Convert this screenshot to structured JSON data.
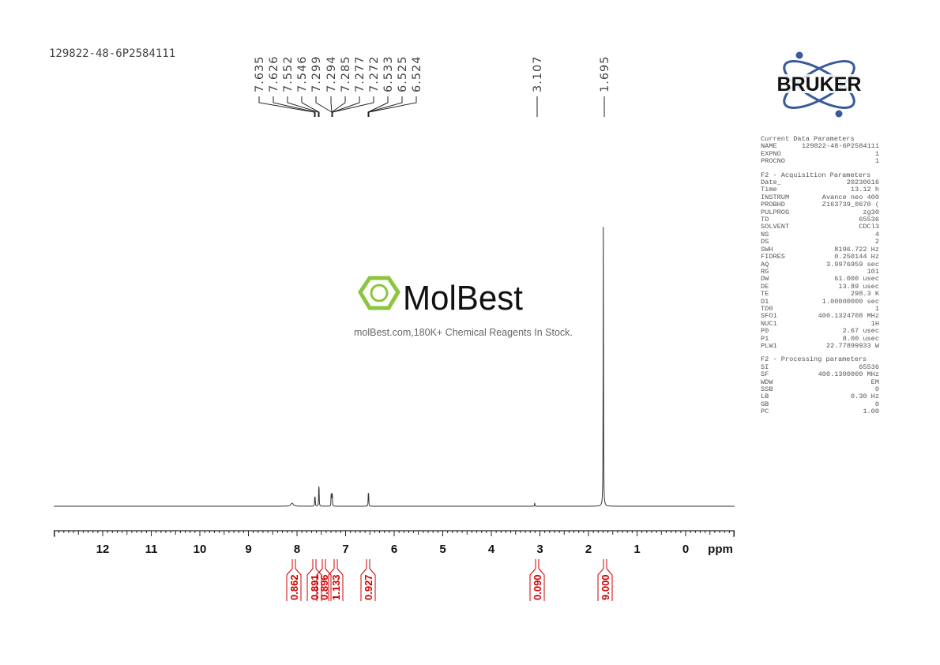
{
  "sample_name": "129822-48-6P2584111",
  "watermark": {
    "brand": "MolBest",
    "tagline": "molBest.com,180K+ Chemical Reagents In Stock."
  },
  "logo": {
    "text": "BRUKER"
  },
  "parameters": {
    "sections": [
      {
        "title": "Current Data Parameters",
        "rows": [
          [
            "NAME",
            "129822-48-6P2584111"
          ],
          [
            "EXPNO",
            "1"
          ],
          [
            "PROCNO",
            "1"
          ]
        ]
      },
      {
        "title": "F2 - Acquisition Parameters",
        "rows": [
          [
            "Date_",
            "20230616"
          ],
          [
            "Time",
            "13.12 h"
          ],
          [
            "INSTRUM",
            "Avance neo 400"
          ],
          [
            "PROBHD",
            "Z163739_0670 ("
          ],
          [
            "PULPROG",
            "zg30"
          ],
          [
            "TD",
            "65536"
          ],
          [
            "SOLVENT",
            "CDCl3"
          ],
          [
            "NS",
            "4"
          ],
          [
            "DS",
            "2"
          ],
          [
            "SWH",
            "8196.722 Hz"
          ],
          [
            "FIDRES",
            "0.250144 Hz"
          ],
          [
            "AQ",
            "3.9976959 sec"
          ],
          [
            "RG",
            "101"
          ],
          [
            "DW",
            "61.000 usec"
          ],
          [
            "DE",
            "13.89 usec"
          ],
          [
            "TE",
            "298.3 K"
          ],
          [
            "D1",
            "1.00000000 sec"
          ],
          [
            "TD0",
            "1"
          ],
          [
            "SFO1",
            "400.1324708 MHz"
          ],
          [
            "NUC1",
            "1H"
          ],
          [
            "P0",
            "2.67 usec"
          ],
          [
            "P1",
            "8.00 usec"
          ],
          [
            "PLW1",
            "22.77899933 W"
          ]
        ]
      },
      {
        "title": "F2 - Processing parameters",
        "rows": [
          [
            "SI",
            "65536"
          ],
          [
            "SF",
            "400.1300000 MHz"
          ],
          [
            "WDW",
            "EM"
          ],
          [
            "SSB",
            "0"
          ],
          [
            "LB",
            "0.30 Hz"
          ],
          [
            "GB",
            "0"
          ],
          [
            "PC",
            "1.00"
          ]
        ]
      }
    ]
  },
  "chart_data": {
    "type": "line",
    "xlabel": "ppm",
    "xlim": [
      13,
      -1
    ],
    "x_reversed": true,
    "xticks": [
      "12",
      "11",
      "10",
      "9",
      "8",
      "7",
      "6",
      "5",
      "4",
      "3",
      "2",
      "1",
      "0"
    ],
    "grid": false,
    "peak_labels": [
      "7.635",
      "7.626",
      "7.552",
      "7.546",
      "7.299",
      "7.294",
      "7.285",
      "7.277",
      "7.272",
      "6.533",
      "6.525",
      "6.524",
      "3.107",
      "1.695"
    ],
    "peaks": [
      {
        "ppm": 8.1,
        "intensity": 1.1,
        "width": 0.03
      },
      {
        "ppm": 7.635,
        "intensity": 3.0,
        "width": 0.004
      },
      {
        "ppm": 7.626,
        "intensity": 2.8,
        "width": 0.004
      },
      {
        "ppm": 7.552,
        "intensity": 5.8,
        "width": 0.004
      },
      {
        "ppm": 7.546,
        "intensity": 5.0,
        "width": 0.004
      },
      {
        "ppm": 7.299,
        "intensity": 3.2,
        "width": 0.003
      },
      {
        "ppm": 7.294,
        "intensity": 3.4,
        "width": 0.003
      },
      {
        "ppm": 7.285,
        "intensity": 3.6,
        "width": 0.003
      },
      {
        "ppm": 7.277,
        "intensity": 3.3,
        "width": 0.003
      },
      {
        "ppm": 7.272,
        "intensity": 3.0,
        "width": 0.003
      },
      {
        "ppm": 6.533,
        "intensity": 4.0,
        "width": 0.004
      },
      {
        "ppm": 6.525,
        "intensity": 3.8,
        "width": 0.004
      },
      {
        "ppm": 3.107,
        "intensity": 1.3,
        "width": 0.004
      },
      {
        "ppm": 1.695,
        "intensity": 100,
        "width": 0.004
      }
    ],
    "integrals": [
      {
        "ppm": 8.1,
        "value": "0.862"
      },
      {
        "ppm": 7.63,
        "value": "0.891"
      },
      {
        "ppm": 7.55,
        "value": "0.896"
      },
      {
        "ppm": 7.29,
        "value": "1.133"
      },
      {
        "ppm": 6.53,
        "value": "0.927"
      },
      {
        "ppm": 3.107,
        "value": "0.090"
      },
      {
        "ppm": 1.695,
        "value": "9.000"
      }
    ],
    "integral_color": "#cc0000"
  }
}
